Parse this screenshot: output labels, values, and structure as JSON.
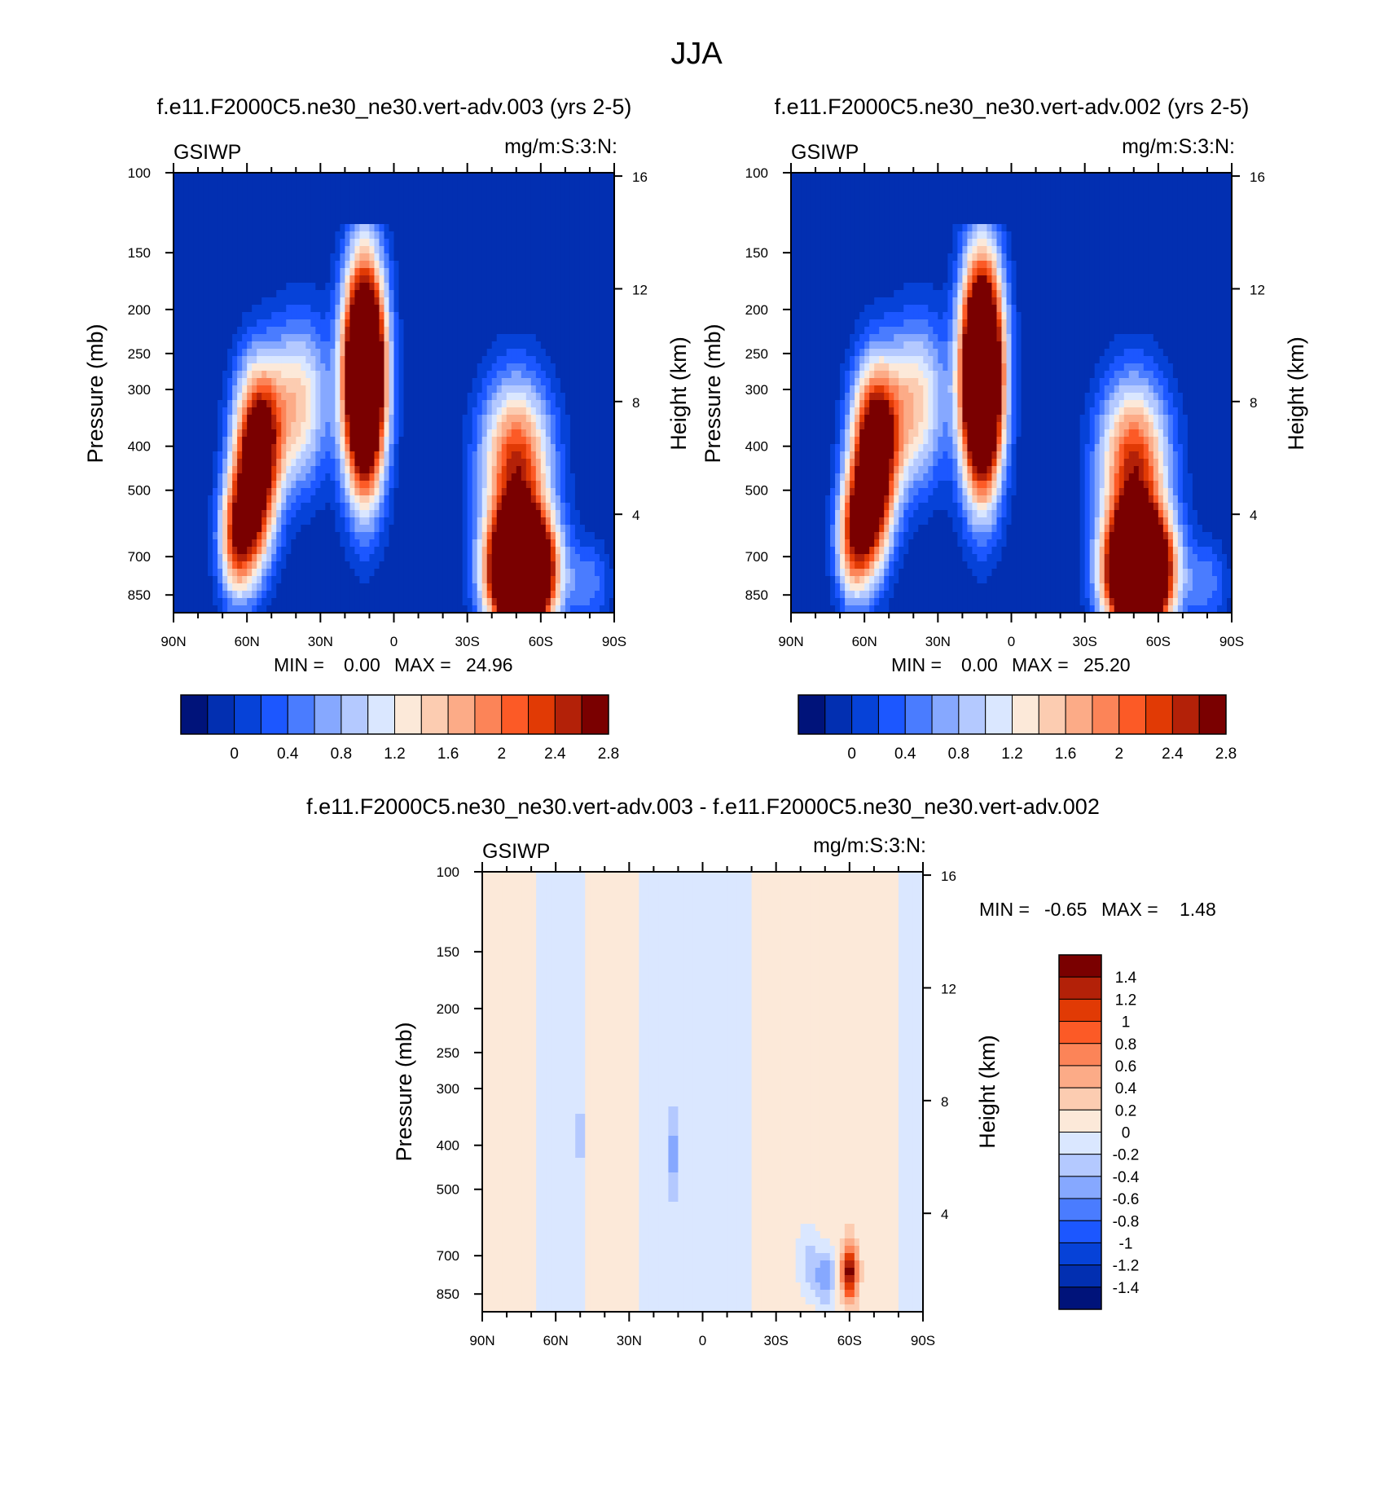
{
  "figure": {
    "title": "JJA"
  },
  "colors": {
    "abs_palette": [
      "#00137a",
      "#022fb1",
      "#0642d8",
      "#1c57ff",
      "#4a7cff",
      "#86a8ff",
      "#b4c9ff",
      "#dae7ff",
      "#fce9d9",
      "#fcccb1",
      "#fcab87",
      "#fc8458",
      "#fc5a26",
      "#e13a05",
      "#b32108",
      "#7a0000"
    ],
    "diff_palette": [
      "#00137a",
      "#022fb1",
      "#0642d8",
      "#1c57ff",
      "#4a7cff",
      "#86a8ff",
      "#b4c9ff",
      "#dae7ff",
      "#fce9d9",
      "#fcccb1",
      "#fcab87",
      "#fc8458",
      "#fc5a26",
      "#e13a05",
      "#b32108",
      "#7a0000"
    ]
  },
  "chart_data": [
    {
      "type": "heatmap",
      "title": "f.e11.F2000C5.ne30_ne30.vert-adv.003 (yrs 2-5)",
      "left_label": "GSIWP",
      "right_label": "mg/m:S:3:N:",
      "ylabel": "Pressure (mb)",
      "ylabel_right": "Height (km)",
      "x_ticks": [
        "90N",
        "60N",
        "30N",
        "0",
        "30S",
        "60S",
        "90S"
      ],
      "y_ticks": [
        100,
        150,
        200,
        250,
        300,
        400,
        500,
        700,
        850
      ],
      "y_right_ticks": [
        16,
        12,
        8,
        4
      ],
      "ylim": [
        100,
        930
      ],
      "minmax": {
        "min_label": "MIN =",
        "min": "0.00",
        "max_label": "MAX =",
        "max": "24.96"
      },
      "colorbar": {
        "orientation": "horizontal",
        "labels": [
          "0",
          "0.4",
          "0.8",
          "1.2",
          "1.6",
          "2",
          "2.4",
          "2.8"
        ],
        "levels": [
          -0.2,
          0,
          0.2,
          0.4,
          0.6,
          0.8,
          1.0,
          1.2,
          1.4,
          1.6,
          1.8,
          2.0,
          2.2,
          2.4,
          2.6,
          2.8,
          3.0
        ]
      },
      "fields": [
        {
          "lat": 55,
          "lev": 380,
          "amp": 3.0,
          "slat": 7,
          "slev": 0.28
        },
        {
          "lat": 58,
          "lev": 560,
          "amp": 2.2,
          "slat": 6,
          "slev": 0.25
        },
        {
          "lat": 65,
          "lev": 650,
          "amp": 1.8,
          "slat": 5,
          "slev": 0.22
        },
        {
          "lat": 38,
          "lev": 320,
          "amp": 1.6,
          "slat": 8,
          "slev": 0.3
        },
        {
          "lat": 12,
          "lev": 280,
          "amp": 6.0,
          "slat": 6,
          "slev": 0.4
        },
        {
          "lat": -52,
          "lev": 760,
          "amp": 7.0,
          "slat": 9,
          "slev": 0.2
        },
        {
          "lat": -50,
          "lev": 440,
          "amp": 2.6,
          "slat": 10,
          "slev": 0.3
        },
        {
          "lat": -80,
          "lev": 800,
          "amp": 0.7,
          "slat": 6,
          "slev": 0.15
        }
      ]
    },
    {
      "type": "heatmap",
      "title": "f.e11.F2000C5.ne30_ne30.vert-adv.002 (yrs 2-5)",
      "left_label": "GSIWP",
      "right_label": "mg/m:S:3:N:",
      "ylabel": "Pressure (mb)",
      "ylabel_right": "Height (km)",
      "x_ticks": [
        "90N",
        "60N",
        "30N",
        "0",
        "30S",
        "60S",
        "90S"
      ],
      "y_ticks": [
        100,
        150,
        200,
        250,
        300,
        400,
        500,
        700,
        850
      ],
      "y_right_ticks": [
        16,
        12,
        8,
        4
      ],
      "ylim": [
        100,
        930
      ],
      "minmax": {
        "min_label": "MIN =",
        "min": "0.00",
        "max_label": "MAX =",
        "max": "25.20"
      },
      "colorbar": {
        "orientation": "horizontal",
        "labels": [
          "0",
          "0.4",
          "0.8",
          "1.2",
          "1.6",
          "2",
          "2.4",
          "2.8"
        ],
        "levels": [
          -0.2,
          0,
          0.2,
          0.4,
          0.6,
          0.8,
          1.0,
          1.2,
          1.4,
          1.6,
          1.8,
          2.0,
          2.2,
          2.4,
          2.6,
          2.8,
          3.0
        ]
      },
      "fields": [
        {
          "lat": 55,
          "lev": 380,
          "amp": 3.2,
          "slat": 7,
          "slev": 0.28
        },
        {
          "lat": 58,
          "lev": 560,
          "amp": 2.3,
          "slat": 6,
          "slev": 0.25
        },
        {
          "lat": 65,
          "lev": 650,
          "amp": 1.8,
          "slat": 5,
          "slev": 0.22
        },
        {
          "lat": 38,
          "lev": 320,
          "amp": 1.6,
          "slat": 8,
          "slev": 0.3
        },
        {
          "lat": 12,
          "lev": 280,
          "amp": 6.2,
          "slat": 6,
          "slev": 0.4
        },
        {
          "lat": -52,
          "lev": 760,
          "amp": 7.0,
          "slat": 9,
          "slev": 0.2
        },
        {
          "lat": -50,
          "lev": 440,
          "amp": 2.6,
          "slat": 10,
          "slev": 0.3
        },
        {
          "lat": -80,
          "lev": 800,
          "amp": 0.7,
          "slat": 6,
          "slev": 0.15
        }
      ]
    },
    {
      "type": "heatmap",
      "title": "f.e11.F2000C5.ne30_ne30.vert-adv.003 - f.e11.F2000C5.ne30_ne30.vert-adv.002",
      "left_label": "GSIWP",
      "right_label": "mg/m:S:3:N:",
      "ylabel": "Pressure (mb)",
      "ylabel_right": "Height (km)",
      "x_ticks": [
        "90N",
        "60N",
        "30N",
        "0",
        "30S",
        "60S",
        "90S"
      ],
      "y_ticks": [
        100,
        150,
        200,
        250,
        300,
        400,
        500,
        700,
        850
      ],
      "y_right_ticks": [
        16,
        12,
        8,
        4
      ],
      "ylim": [
        100,
        930
      ],
      "minmax": {
        "min_label": "MIN =",
        "min": "-0.65",
        "max_label": "MAX =",
        "max": "1.48"
      },
      "colorbar": {
        "orientation": "vertical",
        "labels": [
          "1.4",
          "1.2",
          "1",
          "0.8",
          "0.6",
          "0.4",
          "0.2",
          "0",
          "-0.2",
          "-0.4",
          "-0.6",
          "-0.8",
          "-1",
          "-1.2",
          "-1.4"
        ],
        "levels": [
          -1.6,
          -1.4,
          -1.2,
          -1.0,
          -0.8,
          -0.6,
          -0.4,
          -0.2,
          0,
          0.2,
          0.4,
          0.6,
          0.8,
          1.0,
          1.2,
          1.4,
          1.6
        ]
      },
      "base_bands": [
        {
          "from": 90,
          "to": 68,
          "value": 0.1
        },
        {
          "from": 68,
          "to": 47,
          "value": -0.1
        },
        {
          "from": 47,
          "to": 42,
          "value": 0.1
        },
        {
          "from": 42,
          "to": 25,
          "value": 0.1
        },
        {
          "from": 25,
          "to": -20,
          "value": -0.1
        },
        {
          "from": -20,
          "to": -80,
          "value": 0.1
        },
        {
          "from": -80,
          "to": -90,
          "value": -0.1
        }
      ],
      "fields": [
        {
          "lat": -60,
          "lev": 760,
          "amp": 1.48,
          "slat": 2.2,
          "slev": 0.1
        },
        {
          "lat": -50,
          "lev": 780,
          "amp": -0.65,
          "slat": 3,
          "slev": 0.1
        },
        {
          "lat": -43,
          "lev": 720,
          "amp": -0.35,
          "slat": 3,
          "slev": 0.12
        },
        {
          "lat": 12,
          "lev": 420,
          "amp": -0.45,
          "slat": 1.5,
          "slev": 0.15
        },
        {
          "lat": 50,
          "lev": 380,
          "amp": -0.35,
          "slat": 1.0,
          "slev": 0.1
        }
      ]
    }
  ]
}
